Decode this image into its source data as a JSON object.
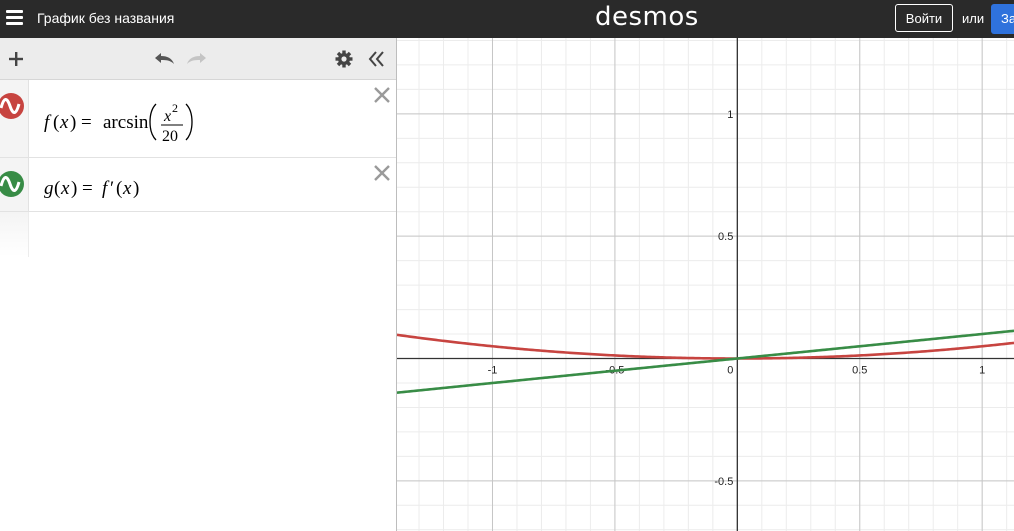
{
  "header": {
    "graph_title": "График без названия",
    "logo": "desmos",
    "signin_label": "Войти",
    "or_label": "или",
    "signup_label": "За"
  },
  "toolbar": {
    "add_icon": "plus-icon",
    "undo_icon": "undo-icon",
    "redo_icon": "redo-icon",
    "settings_icon": "gear-icon",
    "collapse_icon": "double-chevron-left-icon"
  },
  "expressions": [
    {
      "index": "1",
      "color": "#c74440",
      "lhs_name": "f",
      "var": "x",
      "func": "arcsin",
      "numerator_var": "x",
      "numerator_exp": "2",
      "denominator": "20"
    },
    {
      "index": "2",
      "color": "#388c46",
      "lhs_name": "g",
      "var": "x",
      "rhs_name": "f",
      "prime": "′"
    }
  ],
  "empty_row_index": "3",
  "graph": {
    "x_ticks": [
      "-1",
      "-0.5",
      "0",
      "0.5",
      "1"
    ],
    "y_ticks": [
      "1",
      "0.5",
      "-0.5"
    ],
    "x_range": [
      -1.39,
      1.13
    ],
    "y_range": [
      -0.705,
      1.31
    ],
    "grid": true,
    "curves": [
      {
        "expr": "arcsin(x^2/20)",
        "color": "#c74440"
      },
      {
        "expr": "x/(10*sqrt(1-x^4/400))",
        "color": "#388c46"
      }
    ]
  }
}
